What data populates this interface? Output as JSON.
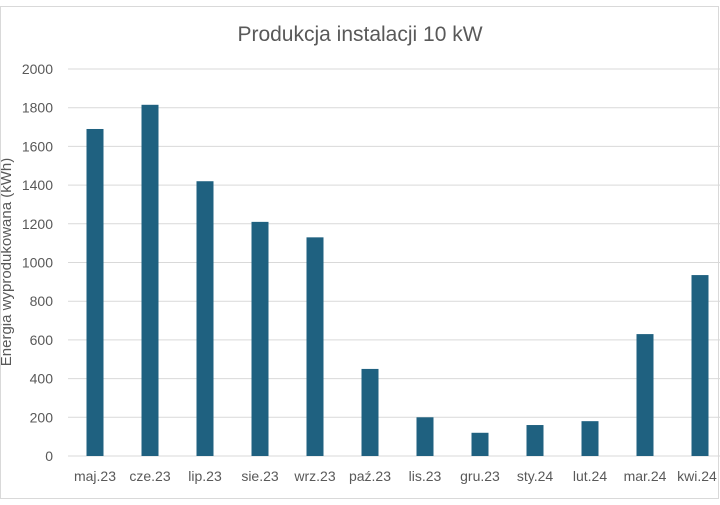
{
  "chart_data": {
    "type": "bar",
    "title": "Produkcja instalacji 10 kW",
    "xlabel": "",
    "ylabel": "Energia wyprodukowana (kWh)",
    "categories": [
      "maj.23",
      "cze.23",
      "lip.23",
      "sie.23",
      "wrz.23",
      "paź.23",
      "lis.23",
      "gru.23",
      "sty.24",
      "lut.24",
      "mar.24",
      "kwi.24"
    ],
    "values": [
      1690,
      1815,
      1420,
      1210,
      1130,
      450,
      200,
      120,
      160,
      180,
      630,
      935
    ],
    "ylim": [
      0,
      2000
    ],
    "yticks": [
      0,
      200,
      400,
      600,
      800,
      1000,
      1200,
      1400,
      1600,
      1800,
      2000
    ],
    "grid": true,
    "legend": "none",
    "bar_color": "#1f6180",
    "grid_color": "#d9d9d9",
    "text_color": "#595959"
  }
}
